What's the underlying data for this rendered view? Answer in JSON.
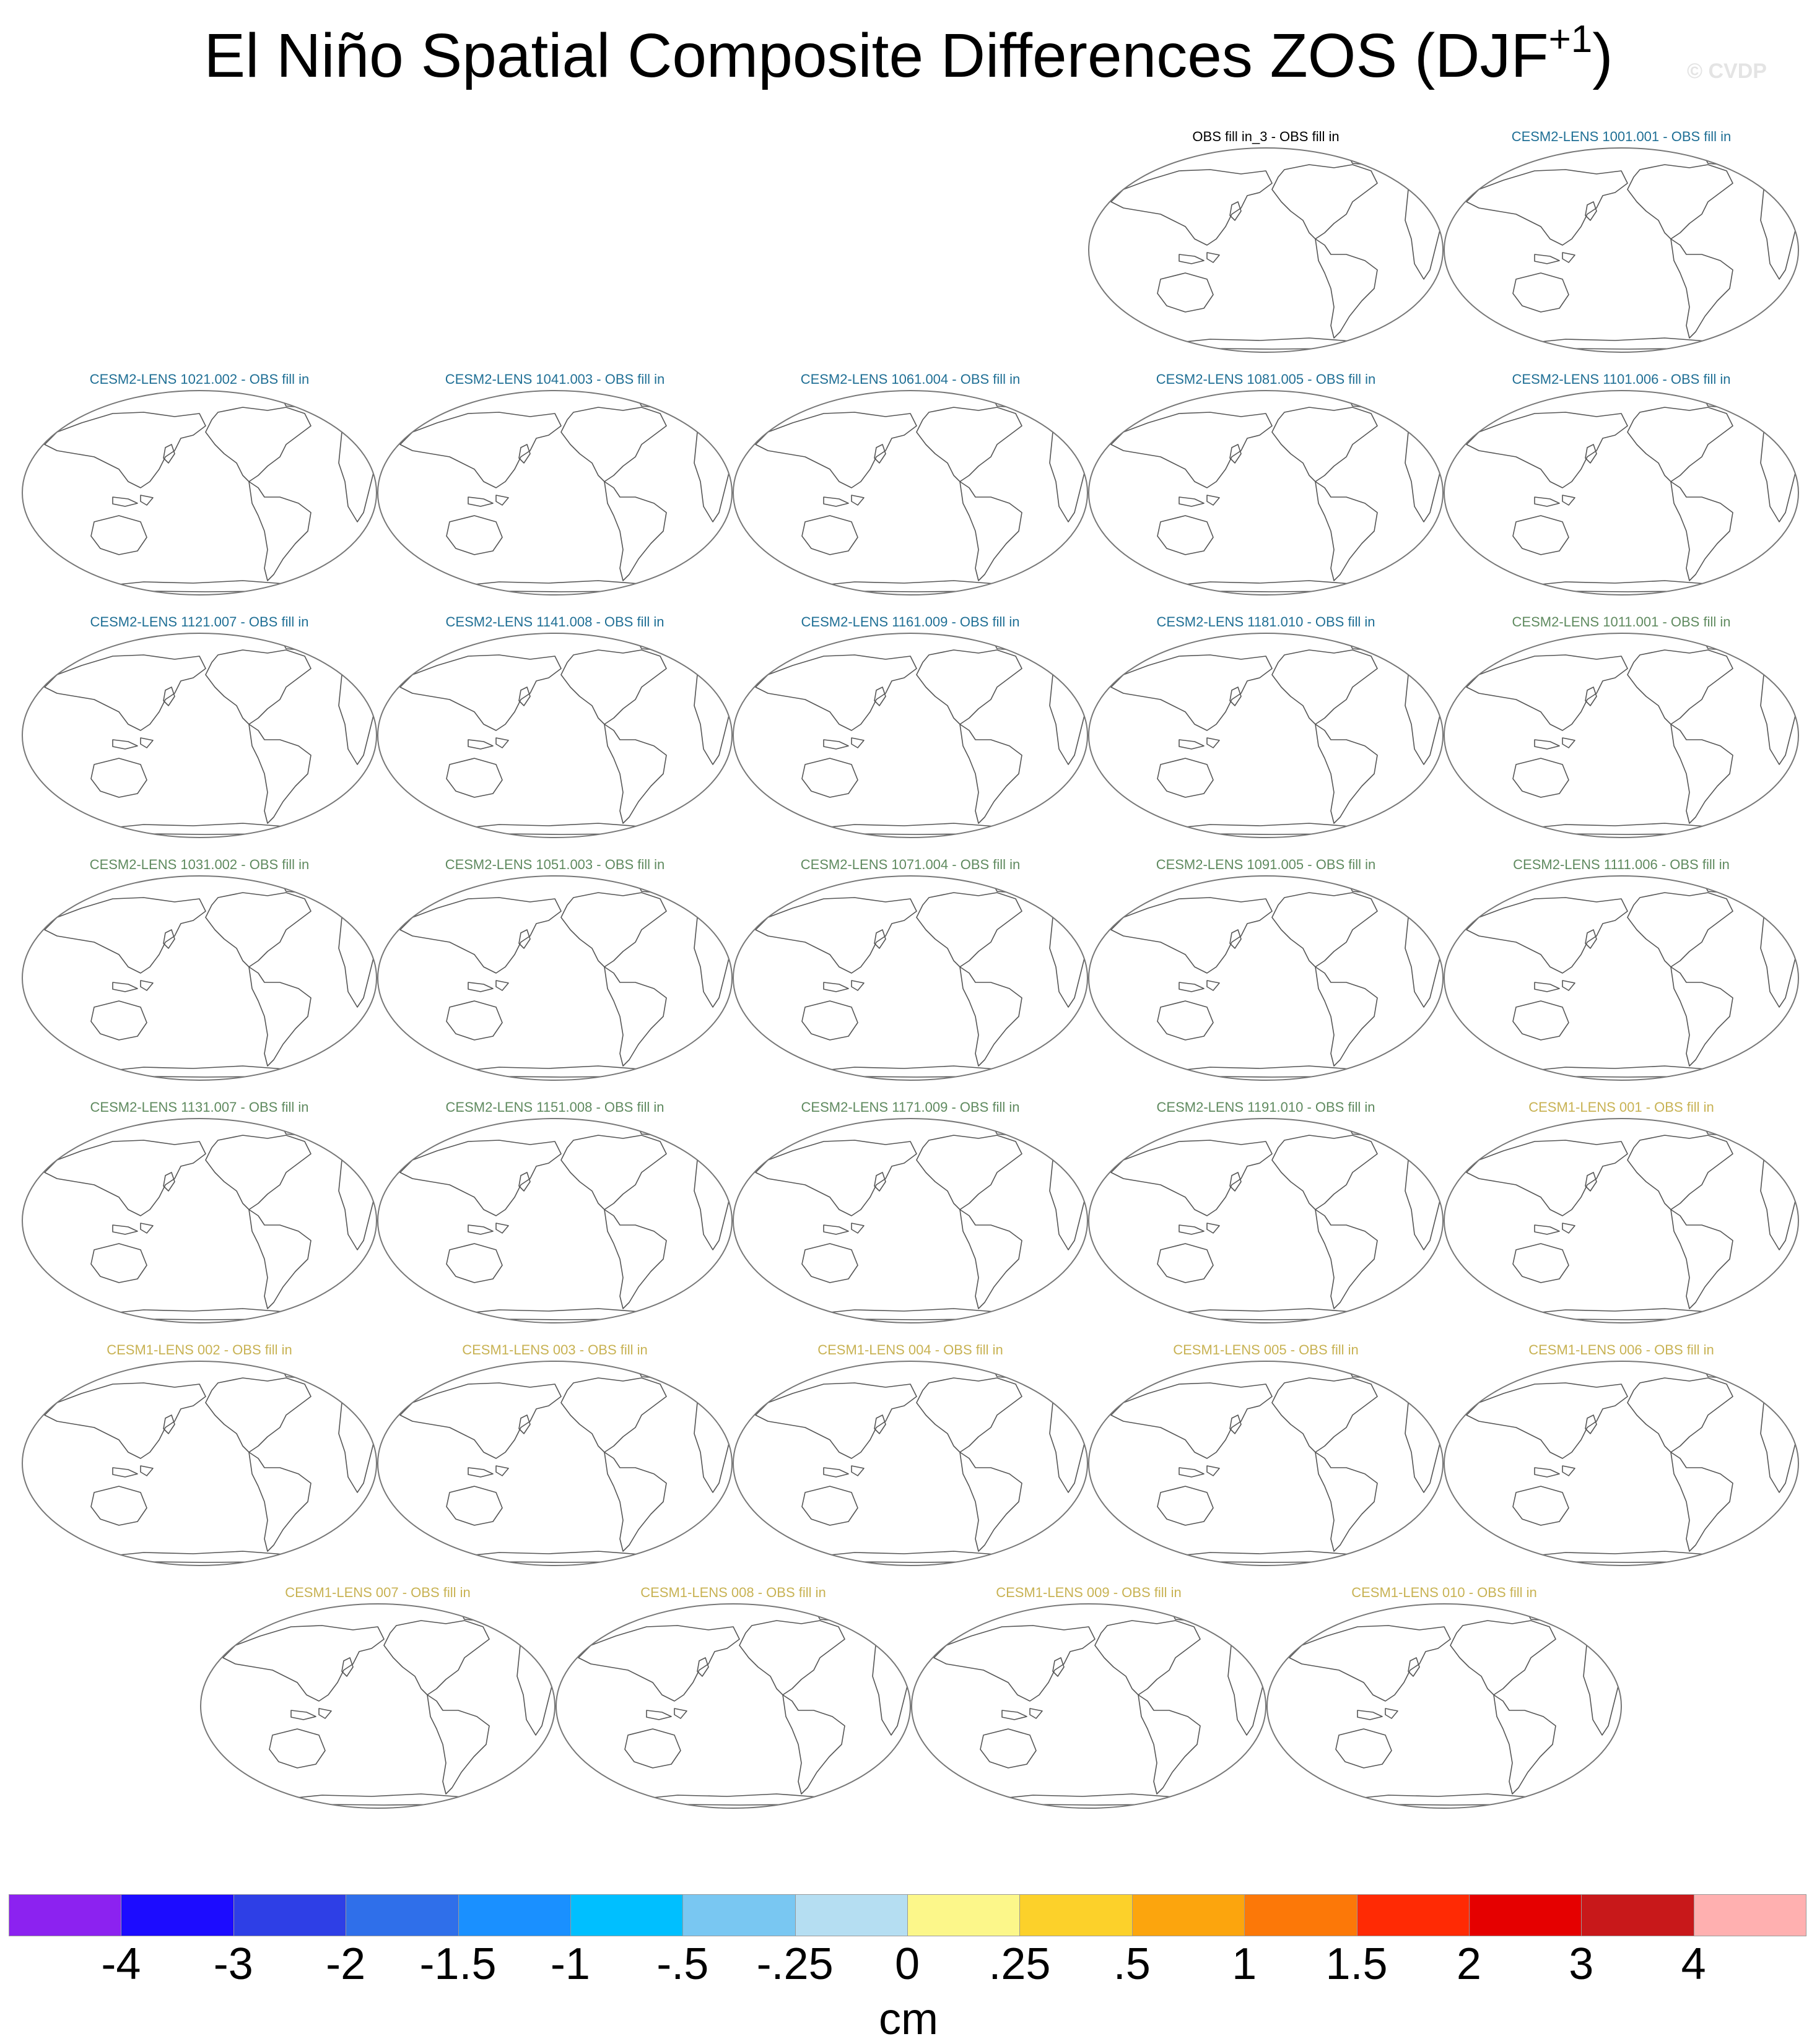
{
  "title": {
    "main": "El Niño Spatial Composite Differences ZOS (DJF",
    "sup": "+1",
    "close": ")"
  },
  "credit": "© CVDP",
  "icons": {
    "map_panel": "world-map-icon"
  },
  "group_colors": {
    "obs": "#000000",
    "cesm2_a": "#1f6f95",
    "cesm2_b": "#5f8a5f",
    "cesm1": "#c8b253"
  },
  "rows": [
    [
      {
        "label": "OBS fill in_3 - OBS fill in",
        "group": "obs"
      },
      {
        "label": "CESM2-LENS 1001.001 - OBS fill in",
        "group": "cesm2_a"
      }
    ],
    [
      {
        "label": "CESM2-LENS 1021.002 - OBS fill in",
        "group": "cesm2_a"
      },
      {
        "label": "CESM2-LENS 1041.003 - OBS fill in",
        "group": "cesm2_a"
      },
      {
        "label": "CESM2-LENS 1061.004 - OBS fill in",
        "group": "cesm2_a"
      },
      {
        "label": "CESM2-LENS 1081.005 - OBS fill in",
        "group": "cesm2_a"
      },
      {
        "label": "CESM2-LENS 1101.006 - OBS fill in",
        "group": "cesm2_a"
      }
    ],
    [
      {
        "label": "CESM2-LENS 1121.007 - OBS fill in",
        "group": "cesm2_a"
      },
      {
        "label": "CESM2-LENS 1141.008 - OBS fill in",
        "group": "cesm2_a"
      },
      {
        "label": "CESM2-LENS 1161.009 - OBS fill in",
        "group": "cesm2_a"
      },
      {
        "label": "CESM2-LENS 1181.010 - OBS fill in",
        "group": "cesm2_a"
      },
      {
        "label": "CESM2-LENS 1011.001 - OBS fill in",
        "group": "cesm2_b"
      }
    ],
    [
      {
        "label": "CESM2-LENS 1031.002 - OBS fill in",
        "group": "cesm2_b"
      },
      {
        "label": "CESM2-LENS 1051.003 - OBS fill in",
        "group": "cesm2_b"
      },
      {
        "label": "CESM2-LENS 1071.004 - OBS fill in",
        "group": "cesm2_b"
      },
      {
        "label": "CESM2-LENS 1091.005 - OBS fill in",
        "group": "cesm2_b"
      },
      {
        "label": "CESM2-LENS 1111.006 - OBS fill in",
        "group": "cesm2_b"
      }
    ],
    [
      {
        "label": "CESM2-LENS 1131.007 - OBS fill in",
        "group": "cesm2_b"
      },
      {
        "label": "CESM2-LENS 1151.008 - OBS fill in",
        "group": "cesm2_b"
      },
      {
        "label": "CESM2-LENS 1171.009 - OBS fill in",
        "group": "cesm2_b"
      },
      {
        "label": "CESM2-LENS 1191.010 - OBS fill in",
        "group": "cesm2_b"
      },
      {
        "label": "CESM1-LENS 001 - OBS fill in",
        "group": "cesm1"
      }
    ],
    [
      {
        "label": "CESM1-LENS 002 - OBS fill in",
        "group": "cesm1"
      },
      {
        "label": "CESM1-LENS 003 - OBS fill in",
        "group": "cesm1"
      },
      {
        "label": "CESM1-LENS 004 - OBS fill in",
        "group": "cesm1"
      },
      {
        "label": "CESM1-LENS 005 - OBS fill in",
        "group": "cesm1"
      },
      {
        "label": "CESM1-LENS 006 - OBS fill in",
        "group": "cesm1"
      }
    ],
    [
      {
        "label": "CESM1-LENS 007 - OBS fill in",
        "group": "cesm1"
      },
      {
        "label": "CESM1-LENS 008 - OBS fill in",
        "group": "cesm1"
      },
      {
        "label": "CESM1-LENS 009 - OBS fill in",
        "group": "cesm1"
      },
      {
        "label": "CESM1-LENS 010 - OBS fill in",
        "group": "cesm1"
      }
    ]
  ],
  "colorbar": {
    "colors": [
      "#8c22f0",
      "#1c0cff",
      "#2e3fe6",
      "#2f6fea",
      "#1a90ff",
      "#00bfff",
      "#79c7f2",
      "#b5def2",
      "#fcf78a",
      "#fcd12a",
      "#fca50d",
      "#fc7808",
      "#ff2a04",
      "#e50000",
      "#c8181a",
      "#ffb0b0"
    ],
    "labels": [
      "-4",
      "-3",
      "-2",
      "-1.5",
      "-1",
      "-.5",
      "-.25",
      "0",
      ".25",
      ".5",
      "1",
      "1.5",
      "2",
      "3",
      "4"
    ],
    "units": "cm"
  }
}
